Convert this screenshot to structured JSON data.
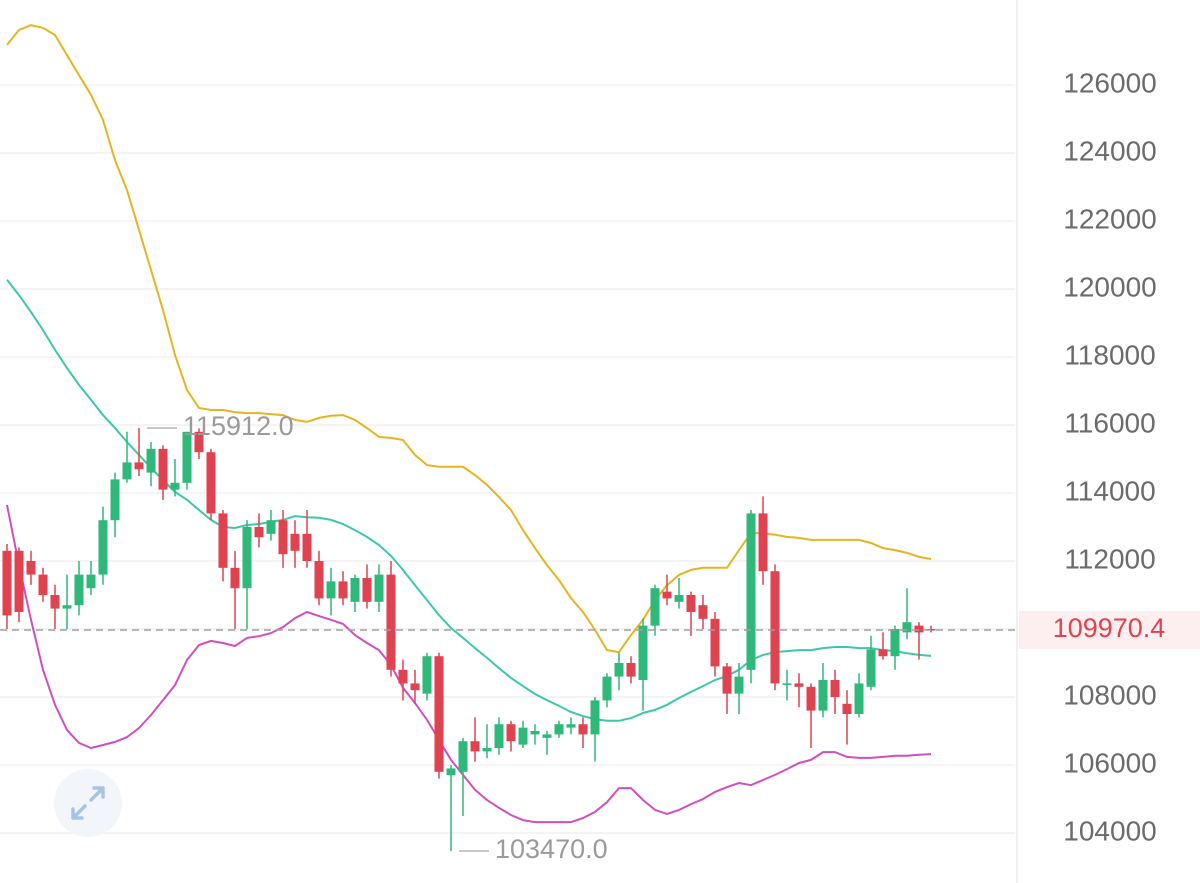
{
  "chart_data": {
    "type": "candlestick",
    "ylim": [
      102530,
      128500
    ],
    "yticks": [
      104000,
      106000,
      108000,
      110000,
      112000,
      114000,
      116000,
      118000,
      120000,
      122000,
      124000,
      126000
    ],
    "grid": true,
    "up_color": "#2eb87a",
    "down_color": "#e0434f",
    "open": [
      112300,
      112300,
      112000,
      111600,
      111000,
      110600,
      110700,
      111200,
      111600,
      113200,
      114400,
      114900,
      114600,
      115300,
      114100,
      114300,
      115800,
      115200,
      113400,
      111800,
      111200,
      113000,
      112800,
      113200,
      112800,
      112800,
      112000,
      110900,
      111400,
      110800,
      111500,
      110800,
      111600,
      108800,
      108400,
      108100,
      109200,
      105700,
      105800,
      106700,
      106400,
      106500,
      107200,
      106600,
      106900,
      106800,
      106900,
      107100,
      107200,
      106900,
      107900,
      108600,
      109000,
      108500,
      110100,
      111100,
      110800,
      111000,
      110700,
      110300,
      108900,
      108100,
      108800,
      113400,
      111700,
      108400,
      108400,
      108300,
      107600,
      108500,
      107800,
      107500,
      108300,
      109400,
      109200,
      109900,
      110100,
      110000
    ],
    "high": [
      112500,
      112400,
      112300,
      111800,
      111300,
      111600,
      112000,
      112000,
      113600,
      114600,
      115800,
      115912,
      115500,
      115400,
      115000,
      115800,
      115900,
      115300,
      113500,
      112300,
      113200,
      113400,
      113500,
      113500,
      113200,
      113500,
      112300,
      111800,
      111700,
      111600,
      111900,
      111900,
      112000,
      109100,
      108800,
      109300,
      109300,
      106000,
      106800,
      107400,
      107200,
      107400,
      107300,
      107300,
      107200,
      107000,
      107300,
      107400,
      107400,
      108000,
      108700,
      109300,
      109200,
      110300,
      111300,
      111600,
      111500,
      111100,
      111000,
      110500,
      109000,
      109000,
      113500,
      113900,
      111900,
      108800,
      108700,
      108400,
      109000,
      108800,
      108200,
      108700,
      109800,
      109900,
      110100,
      111200,
      110200,
      110100
    ],
    "low": [
      110000,
      110200,
      111300,
      110800,
      110000,
      110000,
      110400,
      111000,
      111300,
      112700,
      114300,
      114500,
      114200,
      113800,
      113900,
      114100,
      115000,
      113200,
      111400,
      110000,
      110000,
      112400,
      112600,
      111800,
      111800,
      111800,
      110700,
      110400,
      110700,
      110500,
      110600,
      110500,
      108600,
      107900,
      107800,
      107900,
      105600,
      103470,
      104500,
      106100,
      106200,
      106300,
      106400,
      106500,
      106600,
      106300,
      106800,
      106900,
      106500,
      106100,
      107700,
      108200,
      108400,
      107600,
      109800,
      110700,
      110600,
      109800,
      110000,
      108600,
      107500,
      107500,
      108400,
      111300,
      108200,
      107900,
      107700,
      106500,
      107400,
      107500,
      106600,
      107400,
      108200,
      109100,
      108800,
      109700,
      109100,
      109900
    ],
    "close": [
      110400,
      110500,
      111600,
      111000,
      110600,
      110700,
      111600,
      111600,
      113200,
      114400,
      114900,
      114700,
      115300,
      114100,
      114300,
      115800,
      115200,
      113400,
      111800,
      111200,
      113000,
      112700,
      113200,
      112200,
      112300,
      112000,
      110900,
      111400,
      110900,
      111500,
      110800,
      111600,
      108800,
      108400,
      108200,
      109200,
      105800,
      105900,
      106700,
      106400,
      106500,
      107200,
      106700,
      107100,
      107000,
      106900,
      107200,
      107200,
      106900,
      107900,
      108600,
      109000,
      108600,
      110100,
      111200,
      110900,
      111000,
      110500,
      110300,
      108900,
      108100,
      108600,
      113400,
      111700,
      108400,
      108400,
      108300,
      107600,
      108500,
      108000,
      107500,
      108400,
      109400,
      109200,
      110000,
      110200,
      109900,
      109970.4
    ],
    "lines": [
      {
        "color": "#e6b422",
        "values": [
          127180,
          127620,
          127760,
          127680,
          127470,
          126880,
          126290,
          125710,
          124970,
          123790,
          122910,
          121740,
          120560,
          119380,
          118060,
          117030,
          116500,
          116440,
          116440,
          116380,
          116350,
          116350,
          116320,
          116290,
          116150,
          116090,
          116210,
          116270,
          116290,
          116150,
          115910,
          115650,
          115620,
          115560,
          115120,
          114820,
          114770,
          114770,
          114770,
          114530,
          114240,
          113880,
          113500,
          112910,
          112380,
          111880,
          111440,
          110910,
          110500,
          109970,
          109380,
          109320,
          109820,
          110270,
          110850,
          111290,
          111590,
          111740,
          111800,
          111800,
          111800,
          112320,
          112820,
          112820,
          112770,
          112710,
          112680,
          112620,
          112620,
          112620,
          112620,
          112620,
          112530,
          112380,
          112320,
          112240,
          112120,
          112060
        ]
      },
      {
        "color": "#3cc8a8",
        "values": [
          120270,
          119820,
          119320,
          118790,
          118210,
          117680,
          117180,
          116740,
          116290,
          115910,
          115500,
          115120,
          114740,
          114380,
          114030,
          113800,
          113500,
          113210,
          113000,
          112970,
          113060,
          113090,
          113150,
          113210,
          113320,
          113290,
          113270,
          113210,
          113090,
          112910,
          112710,
          112470,
          112150,
          111740,
          111290,
          110850,
          110410,
          110030,
          109740,
          109440,
          109150,
          108850,
          108560,
          108320,
          108090,
          107910,
          107740,
          107560,
          107440,
          107350,
          107300,
          107300,
          107380,
          107530,
          107620,
          107770,
          107970,
          108150,
          108320,
          108500,
          108620,
          108800,
          109090,
          109240,
          109320,
          109350,
          109380,
          109380,
          109440,
          109470,
          109470,
          109440,
          109440,
          109380,
          109350,
          109290,
          109240,
          109210
        ]
      },
      {
        "color": "#d04fc0",
        "values": [
          113650,
          111880,
          110270,
          108800,
          107770,
          107030,
          106650,
          106500,
          106590,
          106680,
          106820,
          107090,
          107470,
          107910,
          108350,
          109090,
          109530,
          109650,
          109590,
          109500,
          109740,
          109790,
          109880,
          110060,
          110320,
          110500,
          110380,
          110270,
          110150,
          109820,
          109590,
          109380,
          108940,
          108270,
          107820,
          107330,
          106740,
          106150,
          105710,
          105270,
          104970,
          104740,
          104530,
          104380,
          104320,
          104320,
          104320,
          104320,
          104440,
          104620,
          104910,
          105320,
          105320,
          104970,
          104680,
          104560,
          104680,
          104850,
          105000,
          105210,
          105350,
          105470,
          105410,
          105560,
          105710,
          105880,
          106060,
          106150,
          106380,
          106380,
          106240,
          106210,
          106210,
          106240,
          106270,
          106270,
          106300,
          106320
        ]
      }
    ],
    "annotations": [
      {
        "value": 115912,
        "label": "115912.0"
      },
      {
        "value": 103470,
        "label": "103470.0"
      }
    ],
    "last_price": 109970.4
  }
}
